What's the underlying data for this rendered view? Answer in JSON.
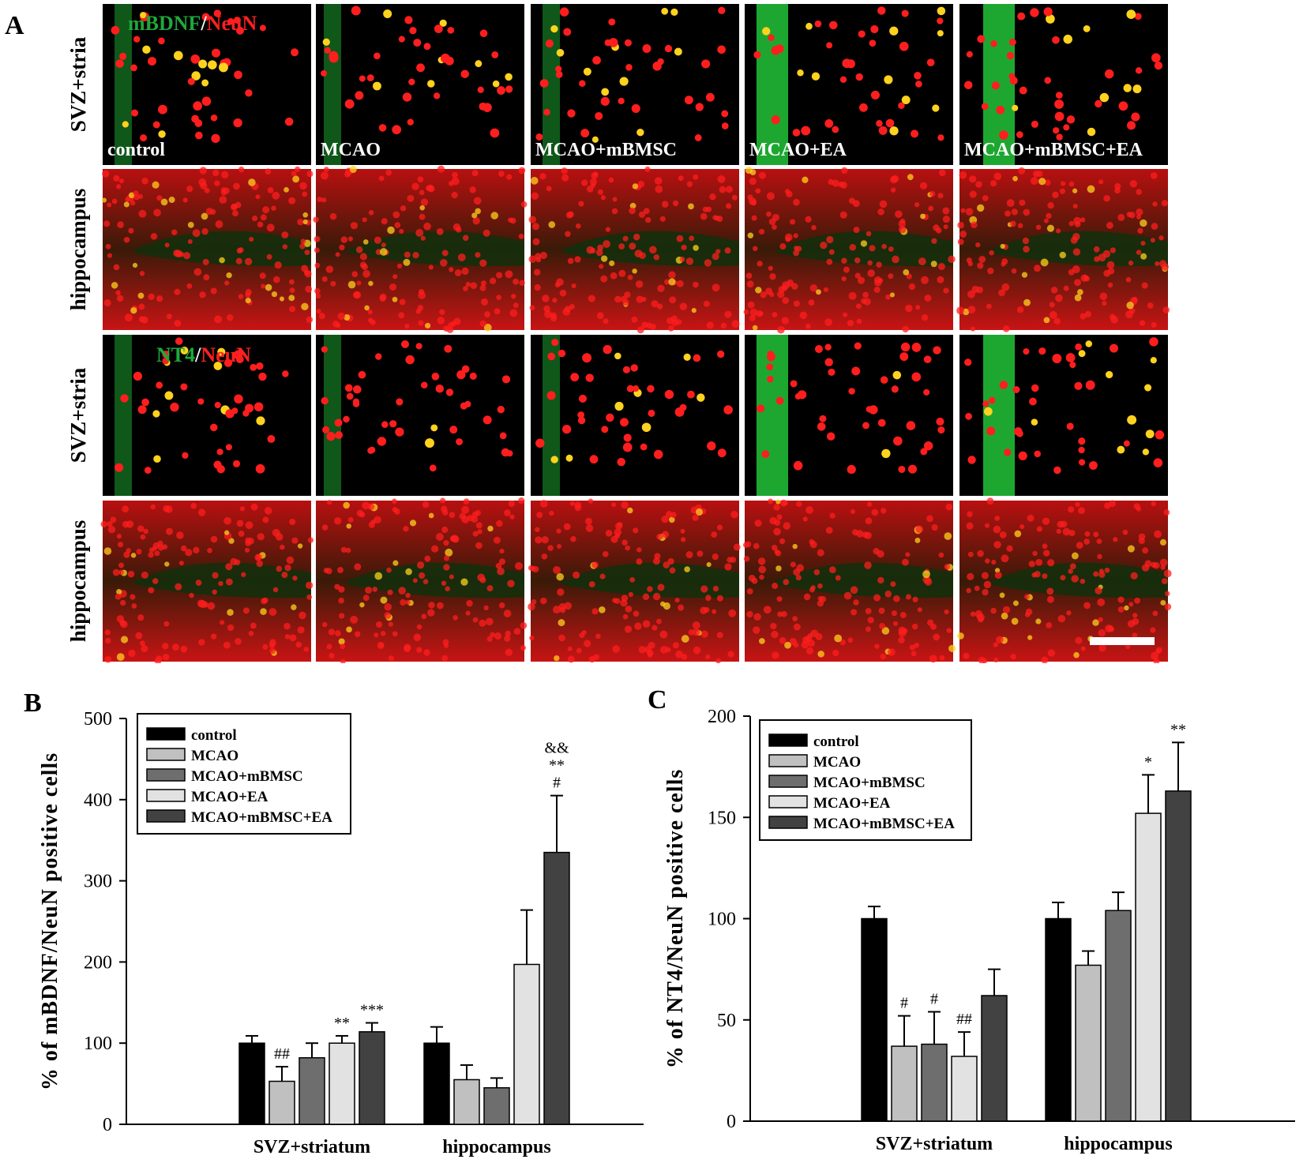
{
  "panels": {
    "a": "A",
    "b": "B",
    "c": "C"
  },
  "micrographs": {
    "row_labels": [
      "SVZ+stria",
      "hippocampus",
      "SVZ+stria",
      "hippocampus"
    ],
    "group_labels": [
      "control",
      "MCAO",
      "MCAO+mBMSC",
      "MCAO+EA",
      "MCAO+mBMSC+EA"
    ],
    "stain1": {
      "marker": "mBDNF",
      "sep": "/",
      "counterstain": "NeuN"
    },
    "stain2": {
      "marker": "NT4",
      "sep": "/",
      "counterstain": "NeuN"
    },
    "colors": {
      "green": "#22c43a",
      "red": "#ff1e1e",
      "yellow": "#ffd21e",
      "bg": "#000000"
    }
  },
  "chart_data": [
    {
      "type": "bar",
      "panel": "B",
      "title": "",
      "xlabel": "",
      "ylabel": "% of mBDNF/NeuN positive cells",
      "ylim": [
        0,
        500
      ],
      "yticks": [
        "0",
        "100",
        "200",
        "300",
        "400",
        "500"
      ],
      "categories": [
        "SVZ+striatum",
        "hippocampus"
      ],
      "legend_position": "top-left",
      "series": [
        {
          "name": "control",
          "color": "#000000",
          "values": [
            100,
            100
          ],
          "errors": [
            9,
            20
          ]
        },
        {
          "name": "MCAO",
          "color": "#c0c0c0",
          "values": [
            53,
            55
          ],
          "errors": [
            18,
            18
          ]
        },
        {
          "name": "MCAO+mBMSC",
          "color": "#6e6e6e",
          "values": [
            82,
            45
          ],
          "errors": [
            18,
            12
          ]
        },
        {
          "name": "MCAO+EA",
          "color": "#e2e2e2",
          "values": [
            100,
            197
          ],
          "errors": [
            9,
            67
          ]
        },
        {
          "name": "MCAO+mBMSC+EA",
          "color": "#424242",
          "values": [
            114,
            335
          ],
          "errors": [
            11,
            70
          ]
        }
      ],
      "annotations": [
        [
          [
            "##"
          ],
          [],
          [],
          [],
          []
        ],
        [
          [],
          [],
          [],
          [],
          []
        ]
      ],
      "annotations_full": [
        [
          [],
          [
            "##"
          ],
          [],
          [
            "**"
          ],
          [
            "***"
          ]
        ],
        [
          [],
          [],
          [],
          [],
          [
            "#",
            "**",
            "&&"
          ]
        ]
      ]
    },
    {
      "type": "bar",
      "panel": "C",
      "title": "",
      "xlabel": "",
      "ylabel": "% of NT4/NeuN positive cells",
      "ylim": [
        0,
        200
      ],
      "yticks": [
        "0",
        "50",
        "100",
        "150",
        "200"
      ],
      "categories": [
        "SVZ+striatum",
        "hippocampus"
      ],
      "legend_position": "top-left",
      "series": [
        {
          "name": "control",
          "color": "#000000",
          "values": [
            100,
            100
          ],
          "errors": [
            6,
            8
          ]
        },
        {
          "name": "MCAO",
          "color": "#c0c0c0",
          "values": [
            37,
            77
          ],
          "errors": [
            15,
            7
          ]
        },
        {
          "name": "MCAO+mBMSC",
          "color": "#6e6e6e",
          "values": [
            38,
            104
          ],
          "errors": [
            16,
            9
          ]
        },
        {
          "name": "MCAO+EA",
          "color": "#e2e2e2",
          "values": [
            32,
            152
          ],
          "errors": [
            12,
            19
          ]
        },
        {
          "name": "MCAO+mBMSC+EA",
          "color": "#424242",
          "values": [
            62,
            163
          ],
          "errors": [
            13,
            24
          ]
        }
      ],
      "annotations_full": [
        [
          [],
          [
            "#"
          ],
          [
            "#"
          ],
          [
            "##"
          ],
          []
        ],
        [
          [],
          [],
          [],
          [
            "*"
          ],
          [
            "**"
          ]
        ]
      ]
    }
  ]
}
